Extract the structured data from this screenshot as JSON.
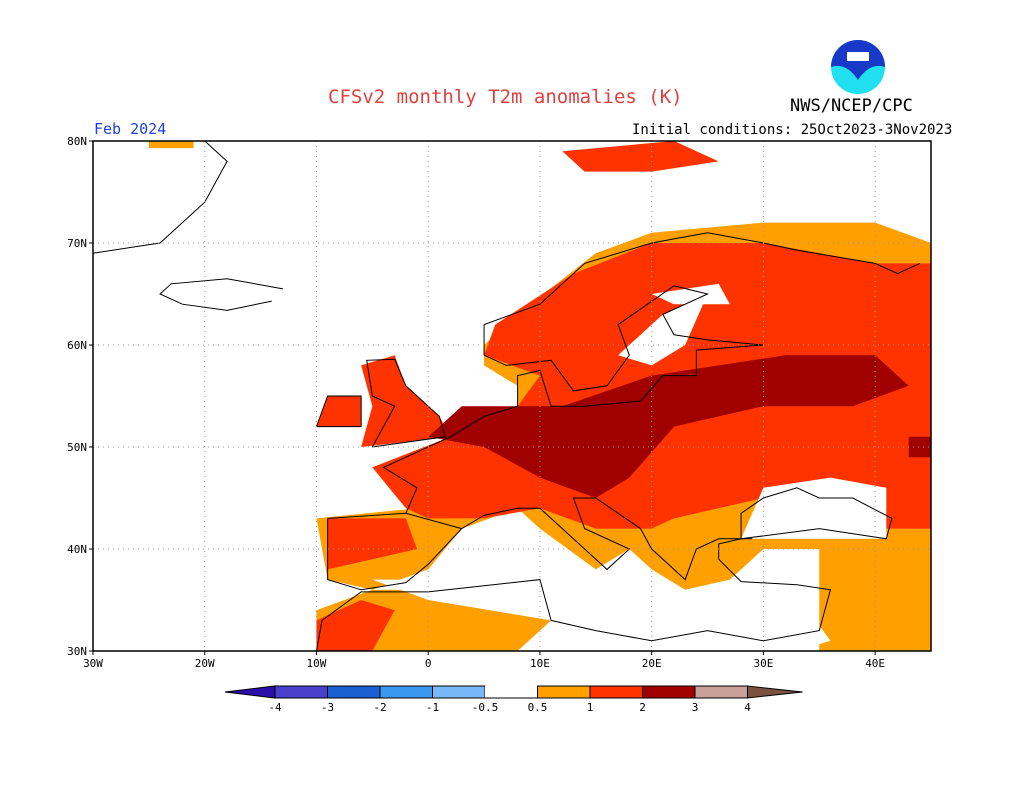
{
  "title": "CFSv2 monthly T2m anomalies (K)",
  "period": "Feb 2024",
  "agency": "NWS/NCEP/CPC",
  "logo_text": "NOAA",
  "initial_conditions": "Initial conditions: 25Oct2023-3Nov2023",
  "chart_data": {
    "type": "heatmap",
    "map_extent": {
      "lon": [
        -30,
        45
      ],
      "lat": [
        30,
        80
      ]
    },
    "grid": true,
    "lat_ticks": [
      "30N",
      "40N",
      "50N",
      "60N",
      "70N",
      "80N"
    ],
    "lon_ticks": [
      "30W",
      "20W",
      "10W",
      "0",
      "10E",
      "20E",
      "30E",
      "40E"
    ],
    "colorbar": {
      "labels": [
        "-4",
        "-3",
        "-2",
        "-1",
        "-0.5",
        "0.5",
        "1",
        "2",
        "3",
        "4"
      ],
      "colors": [
        "#2a10a8",
        "#4a40cc",
        "#1a60d0",
        "#3a98f0",
        "#78b8f8",
        "#ffffff",
        "#ffa000",
        "#ff3300",
        "#a00000",
        "#c8a098",
        "#7a5040"
      ]
    },
    "anomaly_regions": [
      {
        "level": "0.5-1",
        "color": "#ffa000",
        "lonlat": [
          [
            -10,
            43
          ],
          [
            -9,
            37
          ],
          [
            -5,
            36
          ],
          [
            0,
            38
          ],
          [
            3,
            42
          ],
          [
            8,
            44
          ],
          [
            10,
            42
          ],
          [
            15,
            38
          ],
          [
            18,
            40
          ],
          [
            20,
            38
          ],
          [
            23,
            36
          ],
          [
            27,
            37
          ],
          [
            30,
            40
          ],
          [
            36,
            40
          ],
          [
            38,
            37
          ],
          [
            45,
            37
          ],
          [
            45,
            70
          ],
          [
            40,
            72
          ],
          [
            30,
            72
          ],
          [
            20,
            71
          ],
          [
            15,
            69
          ],
          [
            8,
            63
          ],
          [
            5,
            60
          ],
          [
            5,
            58
          ],
          [
            8,
            56
          ],
          [
            8,
            54
          ],
          [
            2,
            51
          ],
          [
            -5,
            48
          ],
          [
            -2,
            47
          ],
          [
            -1,
            44
          ]
        ]
      },
      {
        "level": "0.5-1",
        "color": "#ffa000",
        "lonlat": [
          [
            -10,
            30
          ],
          [
            -10,
            34
          ],
          [
            -5,
            36
          ],
          [
            0,
            36
          ],
          [
            10,
            37
          ],
          [
            11,
            33
          ],
          [
            8,
            30
          ]
        ]
      },
      {
        "level": "0.5-1",
        "color": "#ffa000",
        "lonlat": [
          [
            35,
            30
          ],
          [
            45,
            30
          ],
          [
            45,
            40
          ],
          [
            35,
            40
          ]
        ]
      },
      {
        "level": "0.5-1",
        "color": "#ffa000",
        "lonlat": [
          [
            -25,
            80
          ],
          [
            -21,
            80
          ],
          [
            -21,
            79.3
          ],
          [
            -25,
            79.3
          ]
        ]
      },
      {
        "level": "1-2",
        "color": "#ff3300",
        "lonlat": [
          [
            -5,
            48
          ],
          [
            2,
            51
          ],
          [
            8,
            54
          ],
          [
            10,
            57
          ],
          [
            5,
            59
          ],
          [
            6,
            62
          ],
          [
            13,
            67
          ],
          [
            20,
            70
          ],
          [
            30,
            70
          ],
          [
            40,
            68
          ],
          [
            45,
            68
          ],
          [
            45,
            42
          ],
          [
            38,
            42
          ],
          [
            30,
            45
          ],
          [
            22,
            43
          ],
          [
            20,
            42
          ],
          [
            15,
            42
          ],
          [
            10,
            44
          ],
          [
            5,
            43
          ],
          [
            0,
            43
          ],
          [
            -2,
            44
          ]
        ]
      },
      {
        "level": "1-2",
        "color": "#ff3300",
        "lonlat": [
          [
            -6,
            50
          ],
          [
            2,
            51
          ],
          [
            1,
            53
          ],
          [
            -2,
            56
          ],
          [
            -3,
            59
          ],
          [
            -6,
            58
          ],
          [
            -5,
            54
          ]
        ]
      },
      {
        "level": "1-2",
        "color": "#ff3300",
        "lonlat": [
          [
            -10,
            52
          ],
          [
            -6,
            52
          ],
          [
            -6,
            55
          ],
          [
            -9,
            55
          ]
        ]
      },
      {
        "level": "1-2",
        "color": "#ff3300",
        "lonlat": [
          [
            -9,
            38
          ],
          [
            -9,
            43
          ],
          [
            -2,
            43
          ],
          [
            -1,
            40
          ],
          [
            -5,
            39
          ]
        ]
      },
      {
        "level": "1-2",
        "color": "#ff3300",
        "lonlat": [
          [
            -10,
            30
          ],
          [
            -10,
            33
          ],
          [
            -6,
            35
          ],
          [
            -3,
            34
          ],
          [
            -5,
            30
          ]
        ]
      },
      {
        "level": "1-2",
        "color": "#ff3300",
        "lonlat": [
          [
            12,
            79
          ],
          [
            22,
            80
          ],
          [
            26,
            78
          ],
          [
            20,
            77
          ],
          [
            14,
            77
          ]
        ]
      },
      {
        "level": "2-3",
        "color": "#a00000",
        "lonlat": [
          [
            3,
            54
          ],
          [
            12,
            54
          ],
          [
            20,
            57
          ],
          [
            32,
            59
          ],
          [
            40,
            59
          ],
          [
            43,
            56
          ],
          [
            38,
            54
          ],
          [
            30,
            54
          ],
          [
            22,
            52
          ],
          [
            18,
            47
          ],
          [
            15,
            45
          ],
          [
            10,
            47
          ],
          [
            5,
            50
          ],
          [
            0,
            51
          ]
        ]
      },
      {
        "level": "2-3",
        "color": "#a00000",
        "lonlat": [
          [
            43,
            49
          ],
          [
            45,
            49
          ],
          [
            45,
            51
          ],
          [
            43,
            51
          ]
        ]
      },
      {
        "level": "below 0.5",
        "color": "#ffffff",
        "lonlat": [
          [
            17,
            59
          ],
          [
            21,
            63
          ],
          [
            25,
            65
          ],
          [
            23,
            60
          ],
          [
            20,
            58
          ]
        ]
      },
      {
        "level": "below 0.5",
        "color": "#ffffff",
        "lonlat": [
          [
            28,
            41
          ],
          [
            41,
            41
          ],
          [
            41,
            46
          ],
          [
            36,
            47
          ],
          [
            30,
            46
          ]
        ]
      },
      {
        "level": "below 0.5",
        "color": "#ffffff",
        "lonlat": [
          [
            20,
            65
          ],
          [
            26,
            66
          ],
          [
            27,
            64
          ],
          [
            22,
            64
          ]
        ]
      },
      {
        "level": "below 0.5",
        "color": "#ffffff",
        "lonlat": [
          [
            -5,
            37
          ],
          [
            0,
            37
          ],
          [
            10,
            38
          ],
          [
            12,
            36
          ],
          [
            20,
            34
          ],
          [
            28,
            33
          ],
          [
            34,
            34
          ],
          [
            36,
            31
          ],
          [
            33,
            30
          ],
          [
            10,
            30
          ],
          [
            11,
            33
          ],
          [
            0,
            35
          ]
        ]
      }
    ]
  }
}
